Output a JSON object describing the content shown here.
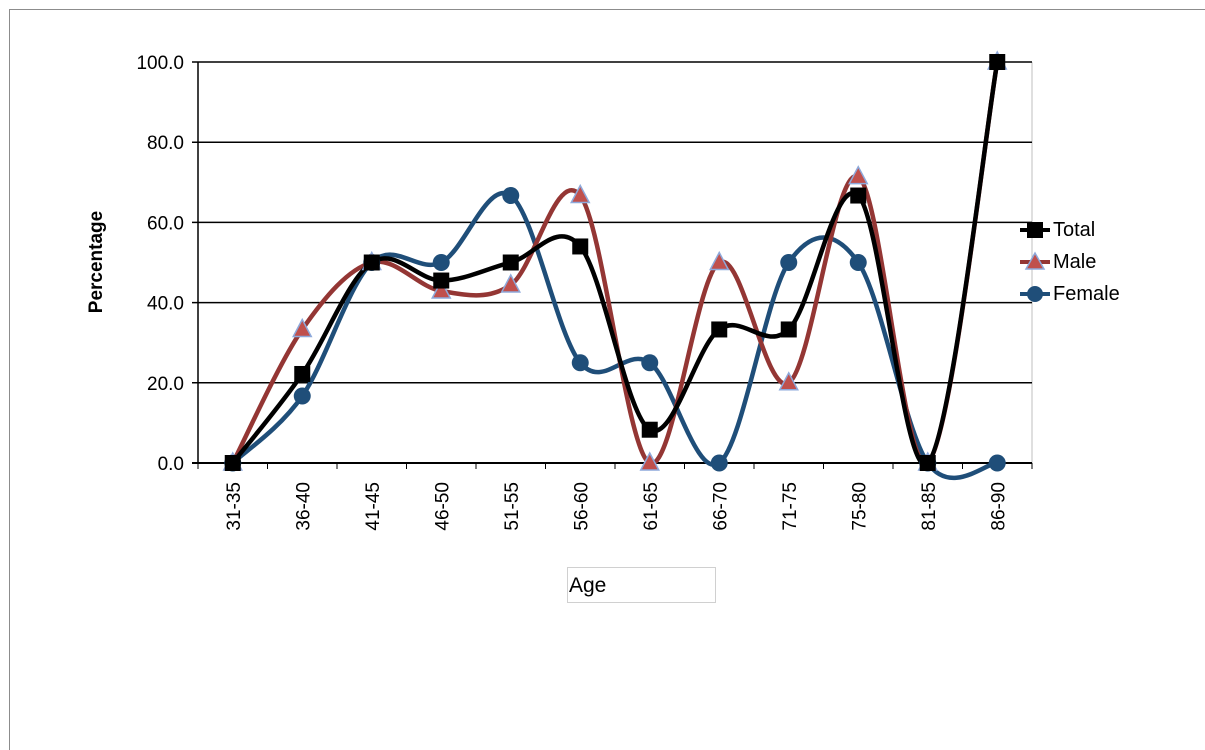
{
  "chart_data": {
    "type": "line",
    "title": "",
    "xlabel": "Age",
    "ylabel": "Percentage",
    "categories": [
      "31-35",
      "36-40",
      "41-45",
      "46-50",
      "51-55",
      "56-60",
      "61-65",
      "66-70",
      "71-75",
      "75-80",
      "81-85",
      "86-90"
    ],
    "ylim": [
      0,
      100
    ],
    "yticks": [
      "0.0",
      "20.0",
      "40.0",
      "60.0",
      "80.0",
      "100.0"
    ],
    "grid": true,
    "smooth": true,
    "legend_position": "right",
    "series": [
      {
        "name": "Total",
        "color": "#000000",
        "marker": "square",
        "values": [
          0,
          22.2,
          50,
          45.5,
          50,
          54,
          8.3,
          33.3,
          33.3,
          66.7,
          0,
          100
        ]
      },
      {
        "name": "Male",
        "color": "#943634",
        "marker": "triangle",
        "values": [
          0,
          33.3,
          50,
          42.9,
          44.4,
          66.7,
          0,
          50,
          20,
          71.4,
          0,
          100
        ]
      },
      {
        "name": "Female",
        "color": "#1f4e79",
        "marker": "circle",
        "values": [
          0,
          16.7,
          50,
          50,
          66.7,
          25,
          25,
          0,
          50,
          50,
          0,
          0
        ]
      }
    ]
  }
}
